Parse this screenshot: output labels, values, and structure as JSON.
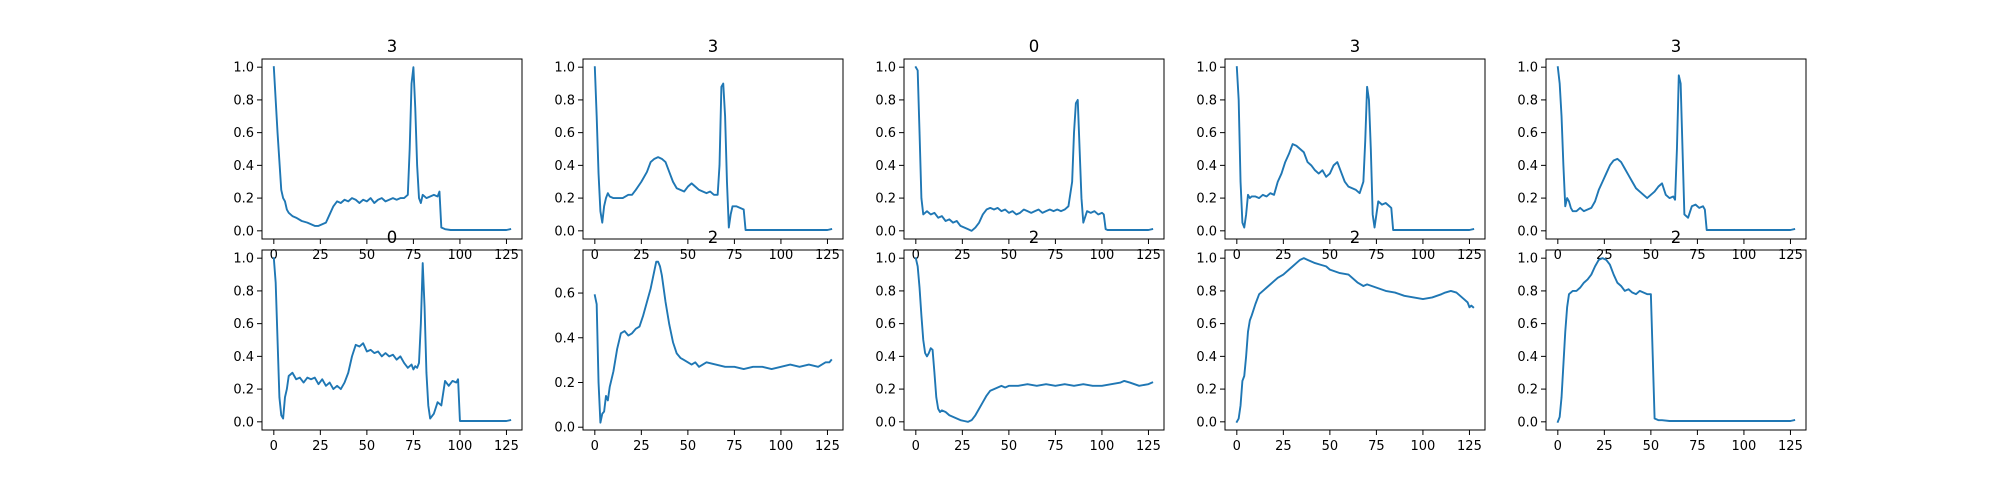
{
  "chart_data": [
    {
      "type": "line",
      "title": "3",
      "xlabel": "",
      "ylabel": "",
      "xlim": [
        -6.35,
        133.35
      ],
      "ylim": [
        -0.05,
        1.05
      ],
      "xticks": [
        0,
        25,
        50,
        75,
        100,
        125
      ],
      "yticks": [
        0.0,
        0.2,
        0.4,
        0.6,
        0.8,
        1.0
      ],
      "color": "#1f77b4",
      "x": [
        0,
        2,
        4,
        5,
        6,
        7,
        8,
        10,
        12,
        15,
        18,
        20,
        22,
        24,
        26,
        28,
        30,
        32,
        34,
        36,
        38,
        40,
        42,
        44,
        46,
        48,
        50,
        52,
        54,
        56,
        58,
        60,
        62,
        64,
        66,
        68,
        70,
        72,
        73,
        74,
        75,
        76,
        77,
        78,
        79,
        80,
        82,
        84,
        86,
        88,
        89,
        90,
        92,
        95,
        100,
        105,
        110,
        115,
        120,
        125,
        127
      ],
      "y": [
        1.0,
        0.6,
        0.25,
        0.2,
        0.18,
        0.13,
        0.11,
        0.09,
        0.08,
        0.06,
        0.05,
        0.04,
        0.03,
        0.03,
        0.04,
        0.05,
        0.1,
        0.15,
        0.18,
        0.17,
        0.19,
        0.18,
        0.2,
        0.19,
        0.17,
        0.19,
        0.18,
        0.2,
        0.17,
        0.19,
        0.2,
        0.18,
        0.19,
        0.2,
        0.19,
        0.2,
        0.2,
        0.22,
        0.5,
        0.9,
        1.0,
        0.75,
        0.4,
        0.2,
        0.17,
        0.22,
        0.2,
        0.21,
        0.22,
        0.21,
        0.24,
        0.02,
        0.01,
        0.005,
        0.005,
        0.005,
        0.005,
        0.005,
        0.005,
        0.005,
        0.01
      ]
    },
    {
      "type": "line",
      "title": "3",
      "xlabel": "",
      "ylabel": "",
      "xlim": [
        -6.35,
        133.35
      ],
      "ylim": [
        -0.05,
        1.05
      ],
      "xticks": [
        0,
        25,
        50,
        75,
        100,
        125
      ],
      "yticks": [
        0.0,
        0.2,
        0.4,
        0.6,
        0.8,
        1.0
      ],
      "color": "#1f77b4",
      "x": [
        0,
        1,
        2,
        3,
        4,
        5,
        6,
        7,
        8,
        10,
        12,
        15,
        18,
        20,
        22,
        25,
        28,
        30,
        32,
        34,
        36,
        38,
        40,
        42,
        44,
        46,
        48,
        50,
        52,
        54,
        56,
        58,
        60,
        62,
        64,
        66,
        67,
        68,
        69,
        70,
        71,
        72,
        73,
        74,
        76,
        78,
        80,
        81,
        85,
        90,
        100,
        110,
        120,
        125,
        127
      ],
      "y": [
        1.0,
        0.7,
        0.35,
        0.12,
        0.05,
        0.15,
        0.2,
        0.23,
        0.21,
        0.2,
        0.2,
        0.2,
        0.22,
        0.22,
        0.25,
        0.3,
        0.36,
        0.42,
        0.44,
        0.45,
        0.44,
        0.42,
        0.36,
        0.3,
        0.26,
        0.25,
        0.24,
        0.27,
        0.29,
        0.27,
        0.25,
        0.24,
        0.23,
        0.24,
        0.22,
        0.22,
        0.4,
        0.88,
        0.9,
        0.7,
        0.3,
        0.02,
        0.1,
        0.15,
        0.15,
        0.14,
        0.13,
        0.005,
        0.005,
        0.005,
        0.005,
        0.005,
        0.005,
        0.005,
        0.01
      ]
    },
    {
      "type": "line",
      "title": "0",
      "xlabel": "",
      "ylabel": "",
      "xlim": [
        -6.35,
        133.35
      ],
      "ylim": [
        -0.05,
        1.05
      ],
      "xticks": [
        0,
        25,
        50,
        75,
        100,
        125
      ],
      "yticks": [
        0.0,
        0.2,
        0.4,
        0.6,
        0.8,
        1.0
      ],
      "color": "#1f77b4",
      "x": [
        0,
        1,
        2,
        3,
        4,
        5,
        6,
        8,
        10,
        12,
        14,
        16,
        18,
        20,
        22,
        24,
        26,
        28,
        30,
        32,
        34,
        36,
        38,
        40,
        42,
        44,
        46,
        48,
        50,
        52,
        54,
        56,
        58,
        60,
        62,
        64,
        66,
        68,
        70,
        72,
        74,
        76,
        78,
        80,
        82,
        84,
        85,
        86,
        87,
        88,
        89,
        90,
        92,
        94,
        96,
        98,
        100,
        101,
        102,
        103,
        104,
        105,
        110,
        120,
        125,
        127
      ],
      "y": [
        1.0,
        0.98,
        0.6,
        0.2,
        0.1,
        0.11,
        0.12,
        0.1,
        0.11,
        0.08,
        0.09,
        0.06,
        0.07,
        0.05,
        0.06,
        0.03,
        0.02,
        0.01,
        0.0,
        0.02,
        0.05,
        0.1,
        0.13,
        0.14,
        0.13,
        0.14,
        0.12,
        0.13,
        0.11,
        0.12,
        0.1,
        0.11,
        0.13,
        0.12,
        0.11,
        0.12,
        0.13,
        0.11,
        0.12,
        0.13,
        0.12,
        0.13,
        0.12,
        0.13,
        0.15,
        0.3,
        0.6,
        0.78,
        0.8,
        0.5,
        0.2,
        0.05,
        0.12,
        0.11,
        0.12,
        0.1,
        0.11,
        0.1,
        0.01,
        0.005,
        0.005,
        0.005,
        0.005,
        0.005,
        0.005,
        0.01
      ]
    },
    {
      "type": "line",
      "title": "3",
      "xlabel": "",
      "ylabel": "",
      "xlim": [
        -6.35,
        133.35
      ],
      "ylim": [
        -0.05,
        1.05
      ],
      "xticks": [
        0,
        25,
        50,
        75,
        100,
        125
      ],
      "yticks": [
        0.0,
        0.2,
        0.4,
        0.6,
        0.8,
        1.0
      ],
      "color": "#1f77b4",
      "x": [
        0,
        1,
        2,
        3,
        4,
        5,
        6,
        7,
        8,
        10,
        12,
        14,
        16,
        18,
        20,
        22,
        24,
        26,
        28,
        30,
        32,
        34,
        36,
        38,
        40,
        42,
        44,
        46,
        48,
        50,
        52,
        54,
        56,
        58,
        60,
        62,
        64,
        66,
        68,
        69,
        70,
        71,
        72,
        73,
        74,
        76,
        78,
        80,
        82,
        83,
        84,
        90,
        100,
        110,
        120,
        125,
        127
      ],
      "y": [
        1.0,
        0.8,
        0.3,
        0.05,
        0.02,
        0.1,
        0.22,
        0.2,
        0.21,
        0.21,
        0.2,
        0.22,
        0.21,
        0.23,
        0.22,
        0.3,
        0.35,
        0.42,
        0.47,
        0.53,
        0.52,
        0.5,
        0.48,
        0.42,
        0.4,
        0.37,
        0.35,
        0.37,
        0.33,
        0.35,
        0.4,
        0.42,
        0.36,
        0.3,
        0.27,
        0.26,
        0.25,
        0.23,
        0.3,
        0.55,
        0.88,
        0.8,
        0.5,
        0.1,
        0.02,
        0.18,
        0.16,
        0.17,
        0.15,
        0.14,
        0.005,
        0.005,
        0.005,
        0.005,
        0.005,
        0.005,
        0.01
      ]
    },
    {
      "type": "line",
      "title": "3",
      "xlabel": "",
      "ylabel": "",
      "xlim": [
        -6.35,
        133.35
      ],
      "ylim": [
        -0.05,
        1.05
      ],
      "xticks": [
        0,
        25,
        50,
        75,
        100,
        125
      ],
      "yticks": [
        0.0,
        0.2,
        0.4,
        0.6,
        0.8,
        1.0
      ],
      "color": "#1f77b4",
      "x": [
        0,
        1,
        2,
        3,
        4,
        5,
        6,
        7,
        8,
        10,
        12,
        14,
        16,
        18,
        20,
        22,
        24,
        26,
        28,
        30,
        32,
        34,
        36,
        38,
        40,
        42,
        44,
        46,
        48,
        50,
        52,
        54,
        56,
        58,
        60,
        62,
        63,
        64,
        65,
        66,
        67,
        68,
        70,
        72,
        74,
        76,
        78,
        79,
        80,
        85,
        90,
        100,
        110,
        120,
        125,
        127
      ],
      "y": [
        1.0,
        0.9,
        0.7,
        0.4,
        0.15,
        0.2,
        0.18,
        0.14,
        0.12,
        0.12,
        0.14,
        0.12,
        0.13,
        0.14,
        0.18,
        0.25,
        0.3,
        0.35,
        0.4,
        0.43,
        0.44,
        0.42,
        0.38,
        0.34,
        0.3,
        0.26,
        0.24,
        0.22,
        0.2,
        0.22,
        0.24,
        0.27,
        0.29,
        0.22,
        0.2,
        0.21,
        0.19,
        0.5,
        0.95,
        0.9,
        0.5,
        0.1,
        0.08,
        0.15,
        0.16,
        0.14,
        0.15,
        0.13,
        0.005,
        0.005,
        0.005,
        0.005,
        0.005,
        0.005,
        0.005,
        0.01
      ]
    },
    {
      "type": "line",
      "title": "0",
      "xlabel": "",
      "ylabel": "",
      "xlim": [
        -6.35,
        133.35
      ],
      "ylim": [
        -0.05,
        1.05
      ],
      "xticks": [
        0,
        25,
        50,
        75,
        100,
        125
      ],
      "yticks": [
        0.0,
        0.2,
        0.4,
        0.6,
        0.8,
        1.0
      ],
      "color": "#1f77b4",
      "x": [
        0,
        1,
        2,
        3,
        4,
        5,
        6,
        7,
        8,
        10,
        12,
        14,
        16,
        18,
        20,
        22,
        24,
        26,
        28,
        30,
        32,
        34,
        36,
        38,
        40,
        42,
        44,
        46,
        48,
        50,
        52,
        54,
        56,
        58,
        60,
        62,
        64,
        66,
        68,
        70,
        72,
        74,
        75,
        76,
        77,
        78,
        79,
        80,
        81,
        82,
        83,
        84,
        86,
        88,
        90,
        92,
        94,
        96,
        98,
        99,
        100,
        105,
        110,
        120,
        125,
        127
      ],
      "y": [
        1.0,
        0.85,
        0.5,
        0.15,
        0.04,
        0.02,
        0.15,
        0.2,
        0.28,
        0.3,
        0.26,
        0.27,
        0.24,
        0.27,
        0.26,
        0.27,
        0.23,
        0.26,
        0.22,
        0.24,
        0.2,
        0.22,
        0.2,
        0.24,
        0.3,
        0.4,
        0.47,
        0.46,
        0.48,
        0.43,
        0.44,
        0.42,
        0.43,
        0.4,
        0.42,
        0.4,
        0.41,
        0.38,
        0.4,
        0.36,
        0.33,
        0.35,
        0.32,
        0.34,
        0.33,
        0.36,
        0.6,
        0.97,
        0.7,
        0.3,
        0.1,
        0.02,
        0.05,
        0.12,
        0.1,
        0.25,
        0.22,
        0.25,
        0.24,
        0.26,
        0.005,
        0.005,
        0.005,
        0.005,
        0.005,
        0.01
      ]
    },
    {
      "type": "line",
      "title": "2",
      "xlabel": "",
      "ylabel": "",
      "xlim": [
        -6.35,
        133.35
      ],
      "ylim": [
        -0.0125,
        0.7925
      ],
      "xticks": [
        0,
        25,
        50,
        75,
        100,
        125
      ],
      "yticks": [
        0.0,
        0.2,
        0.4,
        0.6
      ],
      "color": "#1f77b4",
      "x": [
        0,
        1,
        2,
        3,
        4,
        5,
        6,
        7,
        8,
        10,
        12,
        14,
        16,
        18,
        20,
        22,
        24,
        26,
        28,
        30,
        32,
        33,
        34,
        35,
        36,
        38,
        40,
        42,
        44,
        46,
        48,
        50,
        52,
        54,
        56,
        58,
        60,
        65,
        70,
        75,
        80,
        85,
        90,
        95,
        100,
        105,
        110,
        115,
        120,
        122,
        124,
        126,
        127
      ],
      "y": [
        0.59,
        0.55,
        0.2,
        0.02,
        0.06,
        0.07,
        0.14,
        0.12,
        0.18,
        0.25,
        0.35,
        0.42,
        0.43,
        0.41,
        0.42,
        0.44,
        0.45,
        0.5,
        0.56,
        0.62,
        0.7,
        0.74,
        0.74,
        0.72,
        0.68,
        0.56,
        0.46,
        0.38,
        0.33,
        0.31,
        0.3,
        0.29,
        0.28,
        0.29,
        0.27,
        0.28,
        0.29,
        0.28,
        0.27,
        0.27,
        0.26,
        0.27,
        0.27,
        0.26,
        0.27,
        0.28,
        0.27,
        0.28,
        0.27,
        0.28,
        0.29,
        0.29,
        0.3
      ]
    },
    {
      "type": "line",
      "title": "2",
      "xlabel": "",
      "ylabel": "",
      "xlim": [
        -6.35,
        133.35
      ],
      "ylim": [
        -0.05,
        1.05
      ],
      "xticks": [
        0,
        25,
        50,
        75,
        100,
        125
      ],
      "yticks": [
        0.0,
        0.2,
        0.4,
        0.6,
        0.8,
        1.0
      ],
      "color": "#1f77b4",
      "x": [
        0,
        1,
        2,
        3,
        4,
        5,
        6,
        7,
        8,
        9,
        10,
        11,
        12,
        13,
        14,
        16,
        18,
        20,
        22,
        24,
        26,
        28,
        30,
        32,
        34,
        36,
        38,
        40,
        42,
        44,
        46,
        48,
        50,
        55,
        60,
        65,
        70,
        75,
        80,
        85,
        90,
        95,
        100,
        105,
        110,
        112,
        115,
        120,
        125,
        127
      ],
      "y": [
        1.0,
        0.95,
        0.82,
        0.65,
        0.5,
        0.42,
        0.4,
        0.42,
        0.45,
        0.44,
        0.3,
        0.15,
        0.08,
        0.06,
        0.07,
        0.06,
        0.04,
        0.03,
        0.02,
        0.01,
        0.005,
        0.0,
        0.01,
        0.04,
        0.08,
        0.12,
        0.16,
        0.19,
        0.2,
        0.21,
        0.22,
        0.21,
        0.22,
        0.22,
        0.23,
        0.22,
        0.23,
        0.22,
        0.23,
        0.22,
        0.23,
        0.22,
        0.22,
        0.23,
        0.24,
        0.25,
        0.24,
        0.22,
        0.23,
        0.24
      ]
    },
    {
      "type": "line",
      "title": "2",
      "xlabel": "",
      "ylabel": "",
      "xlim": [
        -6.35,
        133.35
      ],
      "ylim": [
        -0.05,
        1.05
      ],
      "xticks": [
        0,
        25,
        50,
        75,
        100,
        125
      ],
      "yticks": [
        0.0,
        0.2,
        0.4,
        0.6,
        0.8,
        1.0
      ],
      "color": "#1f77b4",
      "x": [
        0,
        1,
        2,
        3,
        4,
        5,
        6,
        7,
        8,
        10,
        12,
        14,
        16,
        18,
        20,
        22,
        25,
        28,
        30,
        32,
        34,
        36,
        38,
        40,
        42,
        45,
        48,
        50,
        55,
        60,
        65,
        68,
        70,
        75,
        80,
        85,
        90,
        95,
        100,
        105,
        110,
        112,
        115,
        118,
        120,
        122,
        124,
        125,
        126,
        127
      ],
      "y": [
        0.0,
        0.02,
        0.1,
        0.25,
        0.28,
        0.4,
        0.55,
        0.62,
        0.65,
        0.72,
        0.78,
        0.8,
        0.82,
        0.84,
        0.86,
        0.88,
        0.9,
        0.93,
        0.95,
        0.97,
        0.99,
        1.0,
        0.99,
        0.98,
        0.97,
        0.96,
        0.95,
        0.93,
        0.91,
        0.9,
        0.85,
        0.83,
        0.84,
        0.82,
        0.8,
        0.79,
        0.77,
        0.76,
        0.75,
        0.76,
        0.78,
        0.79,
        0.8,
        0.79,
        0.77,
        0.75,
        0.73,
        0.7,
        0.71,
        0.7
      ]
    },
    {
      "type": "line",
      "title": "2",
      "xlabel": "",
      "ylabel": "",
      "xlim": [
        -6.35,
        133.35
      ],
      "ylim": [
        -0.05,
        1.05
      ],
      "xticks": [
        0,
        25,
        50,
        75,
        100,
        125
      ],
      "yticks": [
        0.0,
        0.2,
        0.4,
        0.6,
        0.8,
        1.0
      ],
      "color": "#1f77b4",
      "x": [
        0,
        1,
        2,
        3,
        4,
        5,
        6,
        8,
        10,
        12,
        14,
        16,
        18,
        20,
        22,
        24,
        26,
        28,
        30,
        32,
        34,
        36,
        38,
        40,
        42,
        44,
        46,
        48,
        50,
        51,
        52,
        54,
        56,
        60,
        70,
        80,
        90,
        100,
        110,
        120,
        125,
        127
      ],
      "y": [
        0.0,
        0.03,
        0.15,
        0.35,
        0.55,
        0.7,
        0.78,
        0.8,
        0.8,
        0.82,
        0.85,
        0.87,
        0.9,
        0.95,
        0.99,
        1.0,
        0.99,
        0.96,
        0.9,
        0.85,
        0.83,
        0.8,
        0.81,
        0.79,
        0.78,
        0.8,
        0.79,
        0.78,
        0.78,
        0.4,
        0.02,
        0.01,
        0.01,
        0.005,
        0.005,
        0.005,
        0.005,
        0.005,
        0.005,
        0.005,
        0.005,
        0.01
      ]
    }
  ]
}
